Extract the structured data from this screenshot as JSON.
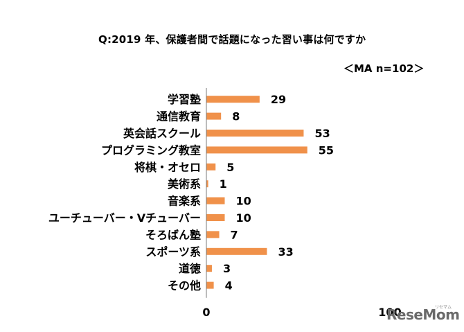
{
  "chart_data": {
    "type": "bar",
    "orientation": "horizontal",
    "title": "Q:2019 年、保護者間で話題になった習い事は何ですか",
    "subtitle": "＜MA n=102＞",
    "categories": [
      "学習塾",
      "通信教育",
      "英会話スクール",
      "プログラミング教室",
      "将棋・オセロ",
      "美術系",
      "音楽系",
      "ユーチューバー・Vチューバー",
      "そろばん塾",
      "スポーツ系",
      "道徳",
      "その他"
    ],
    "values": [
      29,
      8,
      53,
      55,
      5,
      1,
      10,
      10,
      7,
      33,
      3,
      4
    ],
    "xlim": [
      0,
      100
    ],
    "xticks": [
      "0",
      "100"
    ],
    "bar_color": "#f0914a",
    "grid": false,
    "data_labels": true
  },
  "watermark": {
    "text": "ReseMom",
    "sup": "リセマム"
  }
}
